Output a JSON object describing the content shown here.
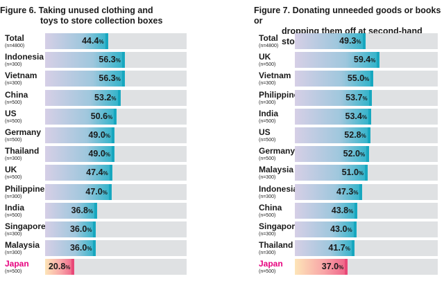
{
  "chart_data": [
    {
      "type": "bar",
      "orientation": "horizontal",
      "title_number": "Figure 6.",
      "title": "Taking unused clothing and toys to store collection boxes",
      "title_lines": [
        "Taking unused clothing and",
        "toys to store collection boxes"
      ],
      "xlim": [
        0,
        100
      ],
      "unit": "%",
      "categories": [
        "Total",
        "Indonesia",
        "Vietnam",
        "China",
        "US",
        "Germany",
        "Thailand",
        "UK",
        "Philippines",
        "India",
        "Singapore",
        "Malaysia",
        "Japan"
      ],
      "samples": [
        "(n=4800)",
        "(n=300)",
        "(n=300)",
        "(n=500)",
        "(n=500)",
        "(n=500)",
        "(n=300)",
        "(n=500)",
        "(n=300)",
        "(n=500)",
        "(n=300)",
        "(n=300)",
        "(n=500)"
      ],
      "values": [
        44.4,
        56.3,
        56.3,
        53.2,
        50.6,
        49.0,
        49.0,
        47.4,
        47.0,
        36.8,
        36.0,
        36.0,
        20.8
      ],
      "value_labels": [
        "44.4",
        "56.3",
        "56.3",
        "53.2",
        "50.6",
        "49.0",
        "49.0",
        "47.4",
        "47.0",
        "36.8",
        "36.0",
        "36.0",
        "20.8"
      ],
      "highlight": "Japan"
    },
    {
      "type": "bar",
      "orientation": "horizontal",
      "title_number": "Figure 7.",
      "title": "Donating unneeded goods or books or dropping them off at second-hand stores",
      "title_lines": [
        "Donating unneeded goods or books or",
        "dropping them off at second-hand stores"
      ],
      "xlim": [
        0,
        100
      ],
      "unit": "%",
      "categories": [
        "Total",
        "UK",
        "Vietnam",
        "Philippines",
        "India",
        "US",
        "Germany",
        "Malaysia",
        "Indonesia",
        "China",
        "Singapore",
        "Thailand",
        "Japan"
      ],
      "samples": [
        "(n=4800)",
        "(n=500)",
        "(n=300)",
        "(n=300)",
        "(n=500)",
        "(n=500)",
        "(n=500)",
        "(n=300)",
        "(n=300)",
        "(n=500)",
        "(n=300)",
        "(n=300)",
        "(n=500)"
      ],
      "values": [
        49.3,
        59.4,
        55.0,
        53.7,
        53.4,
        52.8,
        52.0,
        51.0,
        47.3,
        43.8,
        43.0,
        41.7,
        37.0
      ],
      "value_labels": [
        "49.3",
        "59.4",
        "55.0",
        "53.7",
        "53.4",
        "52.8",
        "52.0",
        "51.0",
        "47.3",
        "43.8",
        "43.0",
        "41.7",
        "37.0"
      ],
      "highlight": "Japan"
    }
  ],
  "colors": {
    "bar_start": "#d6cfe6",
    "bar_end": "#2bb2c9",
    "highlight_start": "#fde5b8",
    "highlight_end": "#ee5e86",
    "highlight_text": "#e6007e",
    "track": "#dfe1e3"
  }
}
